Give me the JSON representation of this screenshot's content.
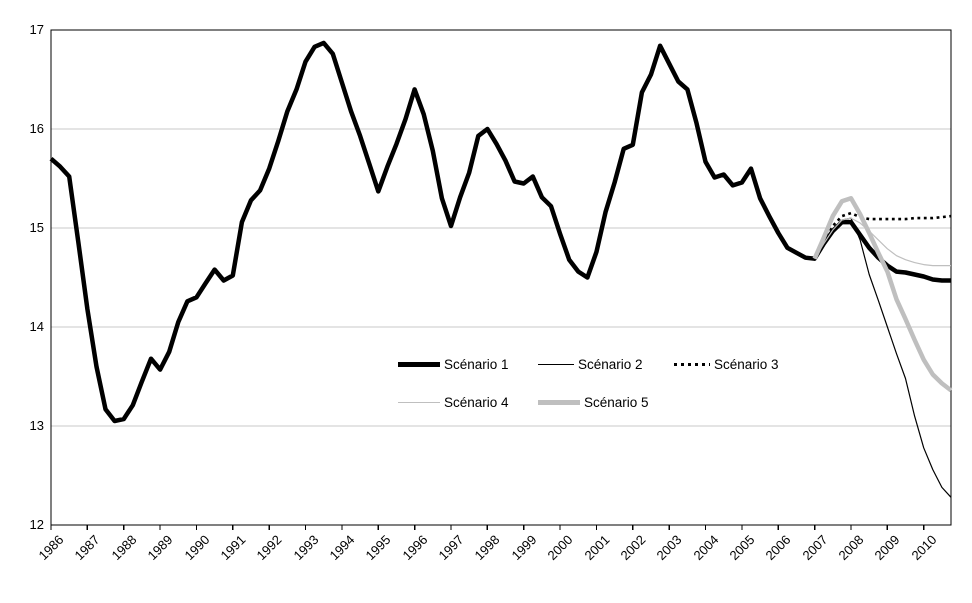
{
  "chart_data": {
    "type": "line",
    "title": "",
    "xlabel": "",
    "ylabel": "",
    "ylim": [
      12,
      17
    ],
    "yticks": [
      17,
      16,
      15,
      14,
      13,
      12
    ],
    "gridlines_at": [
      16,
      15,
      14,
      13
    ],
    "grid_color": "#c8c8c8",
    "frame_color": "#000000",
    "background": "#ffffff",
    "x_years": [
      1986,
      1987,
      1988,
      1989,
      1990,
      1991,
      1992,
      1993,
      1994,
      1995,
      1996,
      1997,
      1998,
      1999,
      2000,
      2001,
      2002,
      2003,
      2004,
      2005,
      2006,
      2007,
      2008,
      2009,
      2010
    ],
    "x_unit": "quarterly",
    "legend_position": "inside-plot-center-bottom",
    "series": [
      {
        "name": "Scénario 1",
        "color": "#000000",
        "width": 4.5,
        "dash": "",
        "start_quarter_index": 0,
        "values": [
          15.7,
          15.62,
          15.52,
          14.86,
          14.18,
          13.6,
          13.17,
          13.05,
          13.07,
          13.21,
          13.45,
          13.68,
          13.57,
          13.75,
          14.05,
          14.26,
          14.3,
          14.44,
          14.58,
          14.47,
          14.52,
          15.06,
          15.28,
          15.38,
          15.6,
          15.88,
          16.18,
          16.4,
          16.68,
          16.83,
          16.87,
          16.76,
          16.47,
          16.18,
          15.93,
          15.65,
          15.37,
          15.62,
          15.85,
          16.1,
          16.4,
          16.15,
          15.78,
          15.3,
          15.02,
          15.31,
          15.56,
          15.93,
          16.0,
          15.85,
          15.68,
          15.47,
          15.45,
          15.52,
          15.31,
          15.22,
          14.94,
          14.68,
          14.56,
          14.5,
          14.76,
          15.16,
          15.46,
          15.8,
          15.84,
          16.37,
          16.55,
          16.84,
          16.66,
          16.48,
          16.4,
          16.06,
          15.67,
          15.51,
          15.54,
          15.43,
          15.46,
          15.6,
          15.3,
          15.12,
          14.95,
          14.8,
          14.75,
          14.7,
          14.69,
          14.84,
          14.97,
          15.06,
          15.06,
          14.93,
          14.8,
          14.7,
          14.62,
          14.56,
          14.55,
          14.53,
          14.51,
          14.48,
          14.47,
          14.47
        ]
      },
      {
        "name": "Scénario 2",
        "color": "#000000",
        "width": 1.2,
        "dash": "",
        "start_quarter_index": 84,
        "values": [
          14.69,
          14.83,
          14.97,
          15.08,
          15.1,
          14.88,
          14.53,
          14.27,
          14.0,
          13.73,
          13.48,
          13.1,
          12.78,
          12.56,
          12.38,
          12.28
        ]
      },
      {
        "name": "Scénario 3",
        "color": "#000000",
        "width": 2.6,
        "dash": "2.8 3.6",
        "start_quarter_index": 84,
        "values": [
          14.69,
          14.86,
          15.02,
          15.12,
          15.15,
          15.11,
          15.09,
          15.09,
          15.09,
          15.09,
          15.09,
          15.1,
          15.1,
          15.1,
          15.11,
          15.12
        ]
      },
      {
        "name": "Scénario 4",
        "color": "#bfbfbf",
        "width": 1.2,
        "dash": "",
        "start_quarter_index": 84,
        "values": [
          14.69,
          14.84,
          14.98,
          15.08,
          15.1,
          15.05,
          14.97,
          14.88,
          14.79,
          14.72,
          14.68,
          14.65,
          14.63,
          14.62,
          14.62,
          14.62
        ]
      },
      {
        "name": "Scénario 5",
        "color": "#bfbfbf",
        "width": 4.5,
        "dash": "",
        "start_quarter_index": 84,
        "values": [
          14.69,
          14.9,
          15.12,
          15.27,
          15.3,
          15.14,
          14.95,
          14.75,
          14.56,
          14.28,
          14.08,
          13.87,
          13.67,
          13.52,
          13.43,
          13.36
        ]
      }
    ]
  }
}
